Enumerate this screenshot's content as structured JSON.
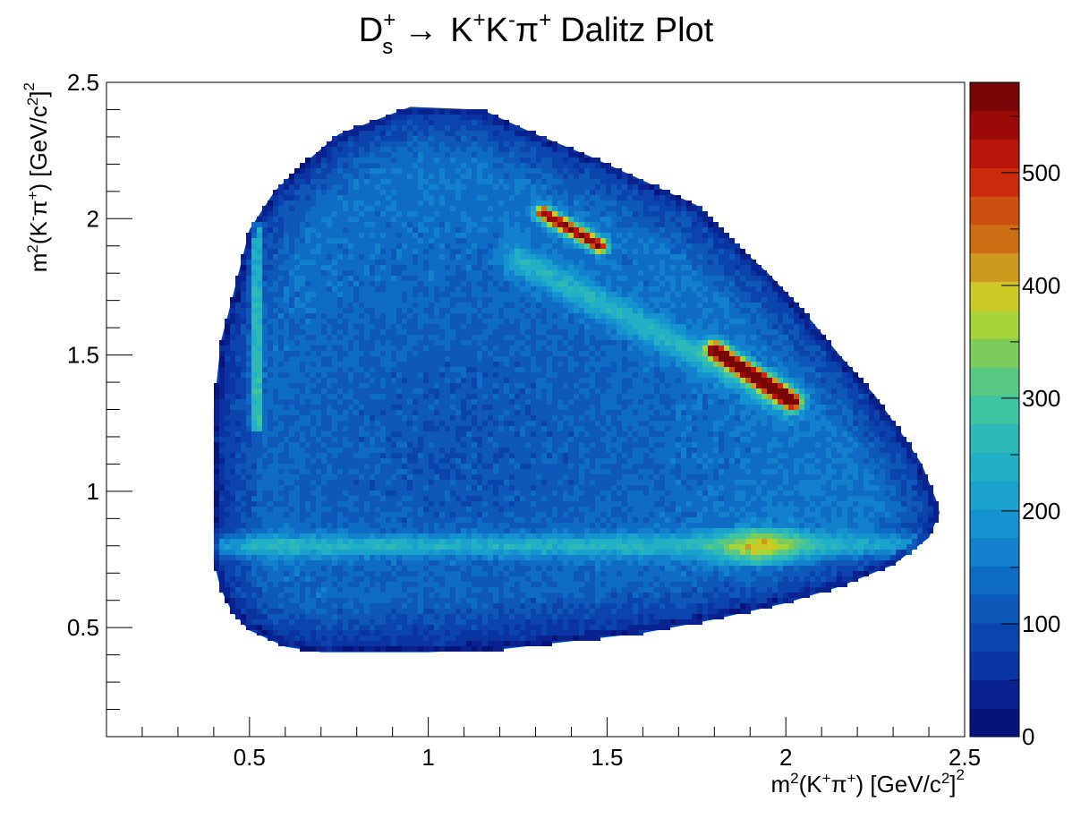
{
  "chart_data": {
    "type": "heatmap",
    "title": {
      "particle": "D",
      "particle_sub": "s",
      "particle_sup": "+",
      "arrow": "→",
      "products": [
        {
          "text": "K",
          "sup": "+"
        },
        {
          "text": "K",
          "sup": "-"
        },
        {
          "text": "π",
          "sup": "+"
        }
      ],
      "suffix": "Dalitz Plot"
    },
    "xlabel": {
      "base": "m",
      "power": "2",
      "open": "(K",
      "k_sup": "+",
      "pi": "π",
      "pi_sup": "+",
      "close": ") [GeV/c",
      "unit_power": "2",
      "end": "]",
      "end_power": "2"
    },
    "ylabel": {
      "base": "m",
      "power": "2",
      "open": "(K",
      "k_sup": "-",
      "pi": "π",
      "pi_sup": "+",
      "close": ") [GeV/c",
      "unit_power": "2",
      "end": "]",
      "end_power": "2"
    },
    "xlim": [
      0.1,
      2.5
    ],
    "ylim": [
      0.1,
      2.5
    ],
    "x_ticks": [
      0.5,
      1,
      1.5,
      2,
      2.5
    ],
    "x_tick_labels": [
      "0.5",
      "1",
      "1.5",
      "2",
      "2.5"
    ],
    "y_ticks": [
      0.5,
      1,
      1.5,
      2,
      2.5
    ],
    "y_tick_labels": [
      "0.5",
      "1",
      "1.5",
      "2",
      "2.5"
    ],
    "z_range": [
      0,
      580
    ],
    "z_ticks": [
      0,
      100,
      200,
      300,
      400,
      500
    ],
    "z_tick_labels": [
      "0",
      "100",
      "200",
      "300",
      "400",
      "500"
    ],
    "colorbar_colors": [
      "#06147a",
      "#0a2290",
      "#0b34a3",
      "#0c44ae",
      "#0d58b8",
      "#0e6cc4",
      "#1280cc",
      "#1592d0",
      "#1aa2cc",
      "#22b0c6",
      "#2eb8b8",
      "#3ec4a2",
      "#58c884",
      "#7ccc5c",
      "#a6d43a",
      "#ccc824",
      "#cc9a1c",
      "#cc6e14",
      "#cc5010",
      "#cc2a0c",
      "#b8140a",
      "#9c0a08",
      "#780606"
    ],
    "boundary": {
      "left": [
        [
          0.4,
          0.74
        ],
        [
          0.4,
          1.3
        ],
        [
          0.42,
          1.55
        ],
        [
          0.45,
          1.7
        ],
        [
          0.5,
          1.96
        ],
        [
          0.57,
          2.1
        ],
        [
          0.65,
          2.2
        ],
        [
          0.75,
          2.31
        ],
        [
          0.85,
          2.36
        ],
        [
          0.95,
          2.41
        ]
      ],
      "right": [
        [
          0.95,
          2.41
        ],
        [
          1.15,
          2.4
        ],
        [
          1.3,
          2.31
        ],
        [
          1.45,
          2.23
        ],
        [
          1.6,
          2.14
        ],
        [
          1.75,
          2.05
        ],
        [
          1.85,
          1.92
        ],
        [
          1.95,
          1.8
        ],
        [
          2.05,
          1.66
        ],
        [
          2.15,
          1.5
        ],
        [
          2.25,
          1.35
        ],
        [
          2.32,
          1.22
        ],
        [
          2.38,
          1.1
        ],
        [
          2.42,
          0.97
        ],
        [
          2.43,
          0.92
        ],
        [
          2.4,
          0.83
        ],
        [
          2.3,
          0.73
        ],
        [
          2.15,
          0.65
        ],
        [
          2.0,
          0.59
        ],
        [
          1.8,
          0.53
        ],
        [
          1.6,
          0.48
        ],
        [
          1.4,
          0.45
        ],
        [
          1.2,
          0.42
        ],
        [
          1.0,
          0.41
        ],
        [
          0.8,
          0.41
        ],
        [
          0.7,
          0.41
        ],
        [
          0.6,
          0.43
        ],
        [
          0.5,
          0.49
        ],
        [
          0.45,
          0.56
        ],
        [
          0.42,
          0.64
        ],
        [
          0.4,
          0.74
        ]
      ]
    },
    "features": {
      "k_star_band_y": 0.8,
      "k_star_hotspot": [
        1.93,
        0.8
      ],
      "phi_band_x": 0.52,
      "phi_band_y_range": [
        1.35,
        1.85
      ],
      "diagonal_band_from": [
        1.25,
        1.85
      ],
      "diagonal_band_to": [
        2.0,
        1.33
      ],
      "hot_upper_from": [
        1.32,
        2.02
      ],
      "hot_upper_to": [
        1.48,
        1.9
      ],
      "hot_lower_from": [
        1.8,
        1.52
      ],
      "hot_lower_to": [
        2.02,
        1.33
      ]
    }
  }
}
